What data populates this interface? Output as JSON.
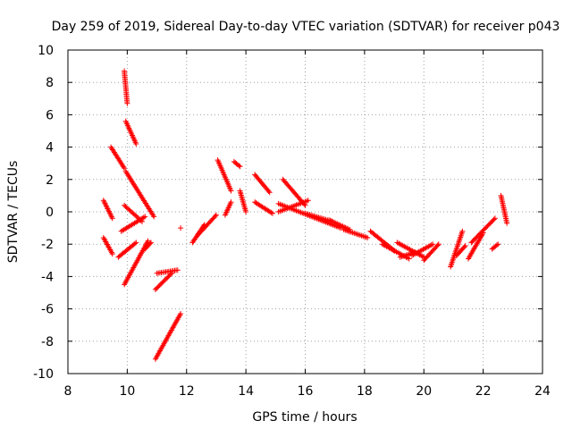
{
  "chart_data": {
    "type": "scatter",
    "title": "Day 259 of 2019, Sidereal Day-to-day VTEC variation (SDTVAR) for receiver p043",
    "xlabel": "GPS time / hours",
    "ylabel": "SDTVAR / TECUs",
    "xlim": [
      8,
      24
    ],
    "ylim": [
      -10,
      10
    ],
    "xticks": [
      "8",
      "10",
      "12",
      "14",
      "16",
      "18",
      "20",
      "22",
      "24"
    ],
    "yticks": [
      "-10",
      "-8",
      "-6",
      "-4",
      "-2",
      "0",
      "2",
      "4",
      "6",
      "8",
      "10"
    ],
    "grid": true,
    "marker": "+",
    "color": "#ff0000",
    "segments": [
      [
        9.2,
        0.7,
        9.5,
        -0.4
      ],
      [
        9.2,
        -1.6,
        9.5,
        -2.6
      ],
      [
        9.45,
        4.0,
        9.9,
        2.7
      ],
      [
        9.9,
        8.7,
        10.0,
        6.7
      ],
      [
        9.95,
        5.6,
        10.3,
        4.2
      ],
      [
        9.95,
        2.5,
        10.9,
        -0.3
      ],
      [
        9.9,
        0.4,
        10.5,
        -0.6
      ],
      [
        9.8,
        -1.2,
        10.6,
        -0.3
      ],
      [
        9.9,
        -4.5,
        10.7,
        -1.8
      ],
      [
        9.7,
        -2.8,
        10.3,
        -1.9
      ],
      [
        10.6,
        -2.3,
        10.8,
        -1.9
      ],
      [
        10.95,
        -4.8,
        11.5,
        -3.8
      ],
      [
        11.0,
        -3.8,
        11.7,
        -3.6
      ],
      [
        10.95,
        -9.1,
        11.8,
        -6.3
      ],
      [
        11.8,
        -1.0,
        11.8,
        -1.0
      ],
      [
        12.2,
        -1.9,
        12.6,
        -0.8
      ],
      [
        12.4,
        -1.4,
        13.0,
        -0.2
      ],
      [
        13.05,
        3.2,
        13.5,
        1.3
      ],
      [
        13.3,
        -0.2,
        13.5,
        0.6
      ],
      [
        13.6,
        3.1,
        13.8,
        2.8
      ],
      [
        13.8,
        1.3,
        14.0,
        0.0
      ],
      [
        14.3,
        2.3,
        14.8,
        1.2
      ],
      [
        14.3,
        0.6,
        14.9,
        -0.1
      ],
      [
        15.1,
        0.0,
        16.1,
        0.7
      ],
      [
        15.25,
        2.0,
        16.0,
        0.4
      ],
      [
        15.1,
        0.5,
        17.2,
        -1.0
      ],
      [
        16.0,
        -0.1,
        16.9,
        -0.6
      ],
      [
        16.8,
        -0.5,
        17.5,
        -1.1
      ],
      [
        17.3,
        -1.1,
        18.1,
        -1.6
      ],
      [
        18.2,
        -1.2,
        19.0,
        -2.4
      ],
      [
        18.6,
        -2.0,
        19.5,
        -2.9
      ],
      [
        19.1,
        -1.9,
        20.0,
        -2.8
      ],
      [
        19.6,
        -2.7,
        20.3,
        -2.0
      ],
      [
        20.0,
        -3.0,
        20.5,
        -2.0
      ],
      [
        19.2,
        -2.8,
        19.7,
        -2.5
      ],
      [
        20.9,
        -3.4,
        21.3,
        -1.2
      ],
      [
        21.1,
        -2.7,
        21.4,
        -2.1
      ],
      [
        21.5,
        -2.9,
        22.0,
        -1.3
      ],
      [
        21.6,
        -1.9,
        22.4,
        -0.4
      ],
      [
        22.3,
        -2.3,
        22.5,
        -2.0
      ],
      [
        22.6,
        1.0,
        22.8,
        -0.7
      ]
    ]
  }
}
